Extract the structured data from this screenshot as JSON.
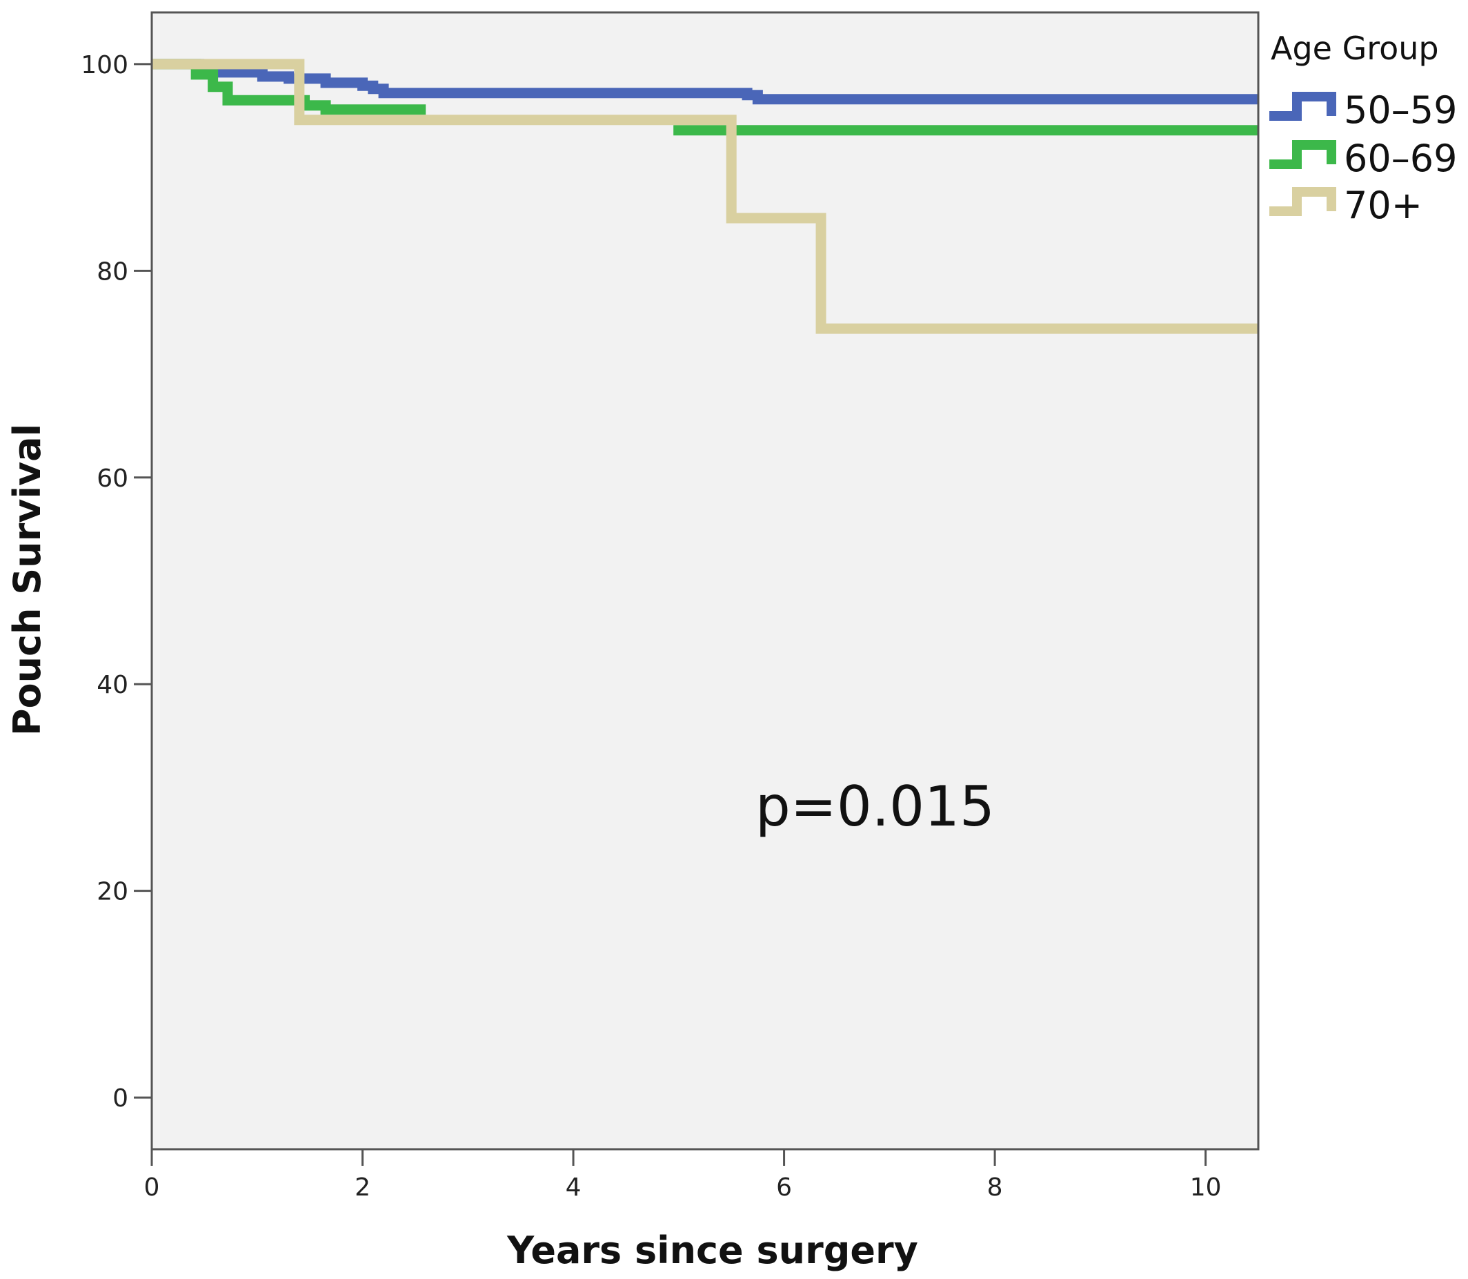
{
  "chart_data": {
    "type": "line",
    "step": true,
    "xlabel": "Years since surgery",
    "ylabel": "Pouch Survival",
    "xlim": [
      0,
      10.5
    ],
    "ylim": [
      -5,
      105
    ],
    "xticks": [
      0,
      2,
      4,
      6,
      8,
      10
    ],
    "yticks": [
      0,
      20,
      40,
      60,
      80,
      100
    ],
    "grid": false,
    "legend": {
      "title": "Age Group",
      "position": "right"
    },
    "annotation": "p=0.015",
    "plot_background": "#f2f2f2",
    "series": [
      {
        "name": "50–59",
        "color": "#4a66b8",
        "x": [
          0,
          0.45,
          0.6,
          1.05,
          1.3,
          1.65,
          2.0,
          2.1,
          2.2,
          5.65,
          5.75,
          10.5
        ],
        "y": [
          100,
          99.7,
          99.2,
          98.8,
          98.6,
          98.2,
          97.9,
          97.6,
          97.2,
          97.0,
          96.6,
          96.6
        ]
      },
      {
        "name": "60–69",
        "color": "#3cb84a",
        "x": [
          0,
          0.42,
          0.58,
          0.72,
          1.45,
          1.65,
          2.6,
          4.95,
          10.5
        ],
        "y": [
          100,
          99.0,
          97.8,
          96.5,
          96.0,
          95.6,
          95.6,
          93.6,
          93.6
        ],
        "gaps": [
          [
            2.6,
            4.95
          ]
        ]
      },
      {
        "name": "70+",
        "color": "#d9d0a0",
        "x": [
          0,
          1.4,
          5.5,
          6.35,
          10.5
        ],
        "y": [
          100,
          94.6,
          85.1,
          74.4,
          74.4
        ]
      }
    ]
  }
}
